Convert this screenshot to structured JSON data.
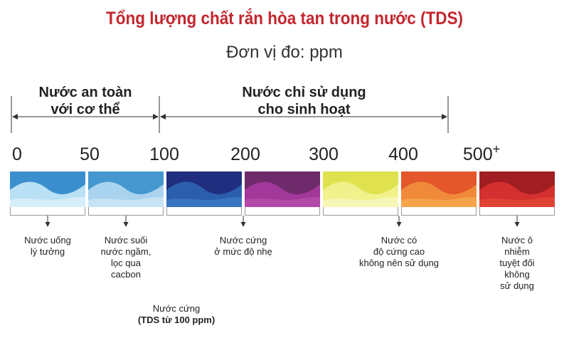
{
  "title": "Tổng lượng chất rắn hòa tan trong nước (TDS)",
  "subtitle": "Đơn vị đo: ppm",
  "ranges": [
    {
      "line1": "Nước an toàn",
      "line2": "với cơ thể"
    },
    {
      "line1": "Nước chỉ sử dụng",
      "line2": "cho sinh hoạt"
    }
  ],
  "scale": {
    "ticks": [
      "0",
      "50",
      "100",
      "200",
      "300",
      "400",
      "500"
    ],
    "plus": "+"
  },
  "segments": [
    {
      "top": "#3b8fce",
      "wave": "#b9e0f5",
      "bottom": "#d7eefb"
    },
    {
      "top": "#4498cf",
      "wave": "#a9d3ee",
      "bottom": "#c7e4f5"
    },
    {
      "top": "#1f2e7e",
      "wave": "#2b5fae",
      "bottom": "#3a74c0"
    },
    {
      "top": "#6e2a6a",
      "wave": "#a2389a",
      "bottom": "#b348a8"
    },
    {
      "top": "#dfe24e",
      "wave": "#f1f28c",
      "bottom": "#f6f7b6"
    },
    {
      "top": "#e3572a",
      "wave": "#f08a3a",
      "bottom": "#f5a44a"
    },
    {
      "top": "#a01d22",
      "wave": "#d4302f",
      "bottom": "#e04236"
    }
  ],
  "descriptions": [
    {
      "lines": [
        "Nước uống",
        "lý tưởng"
      ]
    },
    {
      "lines": [
        "Nước suối",
        "nước ngầm,",
        "lọc qua",
        "cacbon"
      ]
    },
    {
      "lines": [
        "Nước cứng",
        "ở mức độ nhẹ"
      ]
    },
    {
      "lines": [
        "Nước có",
        "độ cứng cao",
        "không nên sử dụng"
      ]
    },
    {
      "lines": [
        "Nước ô nhiễm",
        "tuyệt đối",
        "không",
        "sử dụng"
      ]
    }
  ],
  "footnote": {
    "line1": "Nước cứng",
    "line2": "(TDS từ 100 ppm)"
  }
}
